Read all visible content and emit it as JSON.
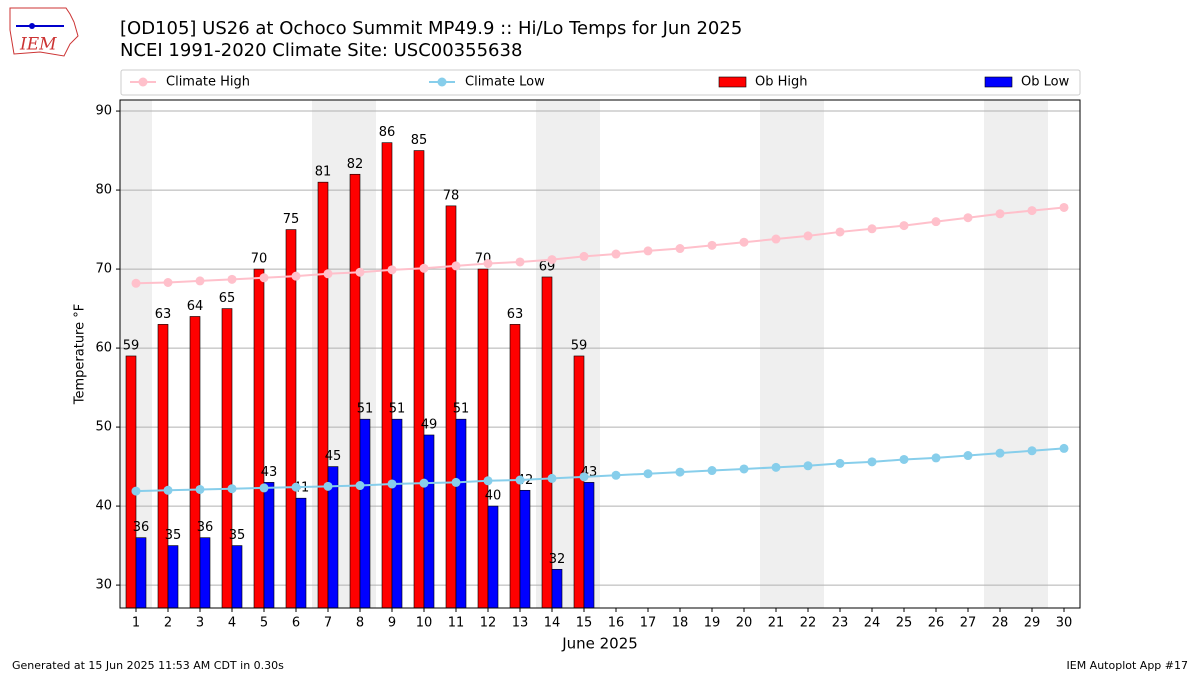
{
  "chart_data": {
    "type": "bar_line",
    "title": "[OD105] US26 at Ochoco Summit MP49.9  :: Hi/Lo Temps for Jun 2025",
    "subtitle": "NCEI 1991-2020 Climate Site: USC00355638",
    "logo_text": "IEM",
    "xlabel": "June 2025",
    "ylabel": "Temperature °F",
    "footer_left": "Generated at 15 Jun 2025 11:53 AM CDT in 0.30s",
    "footer_right": "IEM Autoplot App #17",
    "x": [
      1,
      2,
      3,
      4,
      5,
      6,
      7,
      8,
      9,
      10,
      11,
      12,
      13,
      14,
      15,
      16,
      17,
      18,
      19,
      20,
      21,
      22,
      23,
      24,
      25,
      26,
      27,
      28,
      29,
      30
    ],
    "xlim": [
      0.5,
      30.5
    ],
    "xticks": [
      1,
      2,
      3,
      4,
      5,
      6,
      7,
      8,
      9,
      10,
      11,
      12,
      13,
      14,
      15,
      16,
      17,
      18,
      19,
      20,
      21,
      22,
      23,
      24,
      25,
      26,
      27,
      28,
      29,
      30
    ],
    "ylim": [
      27.1,
      91.4
    ],
    "yticks": [
      30,
      40,
      50,
      60,
      70,
      80,
      90
    ],
    "grid": true,
    "legend": "top",
    "shaded_days": [
      1,
      7,
      8,
      14,
      15,
      21,
      22,
      28,
      29
    ],
    "shade_color": "#efefef",
    "series": [
      {
        "name": "Climate High",
        "kind": "line",
        "color": "#ffc0cb",
        "values": [
          68.2,
          68.3,
          68.5,
          68.7,
          68.9,
          69.1,
          69.4,
          69.6,
          69.9,
          70.1,
          70.4,
          70.7,
          70.9,
          71.2,
          71.6,
          71.9,
          72.3,
          72.6,
          73.0,
          73.4,
          73.8,
          74.2,
          74.7,
          75.1,
          75.5,
          76.0,
          76.5,
          77.0,
          77.4,
          77.8
        ]
      },
      {
        "name": "Climate Low",
        "kind": "line",
        "color": "#87ceeb",
        "values": [
          41.9,
          42.0,
          42.1,
          42.2,
          42.3,
          42.4,
          42.5,
          42.6,
          42.8,
          42.9,
          43.0,
          43.2,
          43.3,
          43.5,
          43.7,
          43.9,
          44.1,
          44.3,
          44.5,
          44.7,
          44.9,
          45.1,
          45.4,
          45.6,
          45.9,
          46.1,
          46.4,
          46.7,
          47.0,
          47.3
        ]
      },
      {
        "name": "Ob High",
        "kind": "bar",
        "color": "#ff0000",
        "values": [
          59,
          63,
          64,
          65,
          70,
          75,
          81,
          82,
          86,
          85,
          78,
          70,
          63,
          69,
          59,
          null,
          null,
          null,
          null,
          null,
          null,
          null,
          null,
          null,
          null,
          null,
          null,
          null,
          null,
          null
        ]
      },
      {
        "name": "Ob Low",
        "kind": "bar",
        "color": "#0000ff",
        "values": [
          36,
          35,
          36,
          35,
          43,
          41,
          45,
          51,
          51,
          49,
          51,
          40,
          42,
          32,
          43,
          null,
          null,
          null,
          null,
          null,
          null,
          null,
          null,
          null,
          null,
          null,
          null,
          null,
          null,
          null
        ]
      }
    ]
  }
}
